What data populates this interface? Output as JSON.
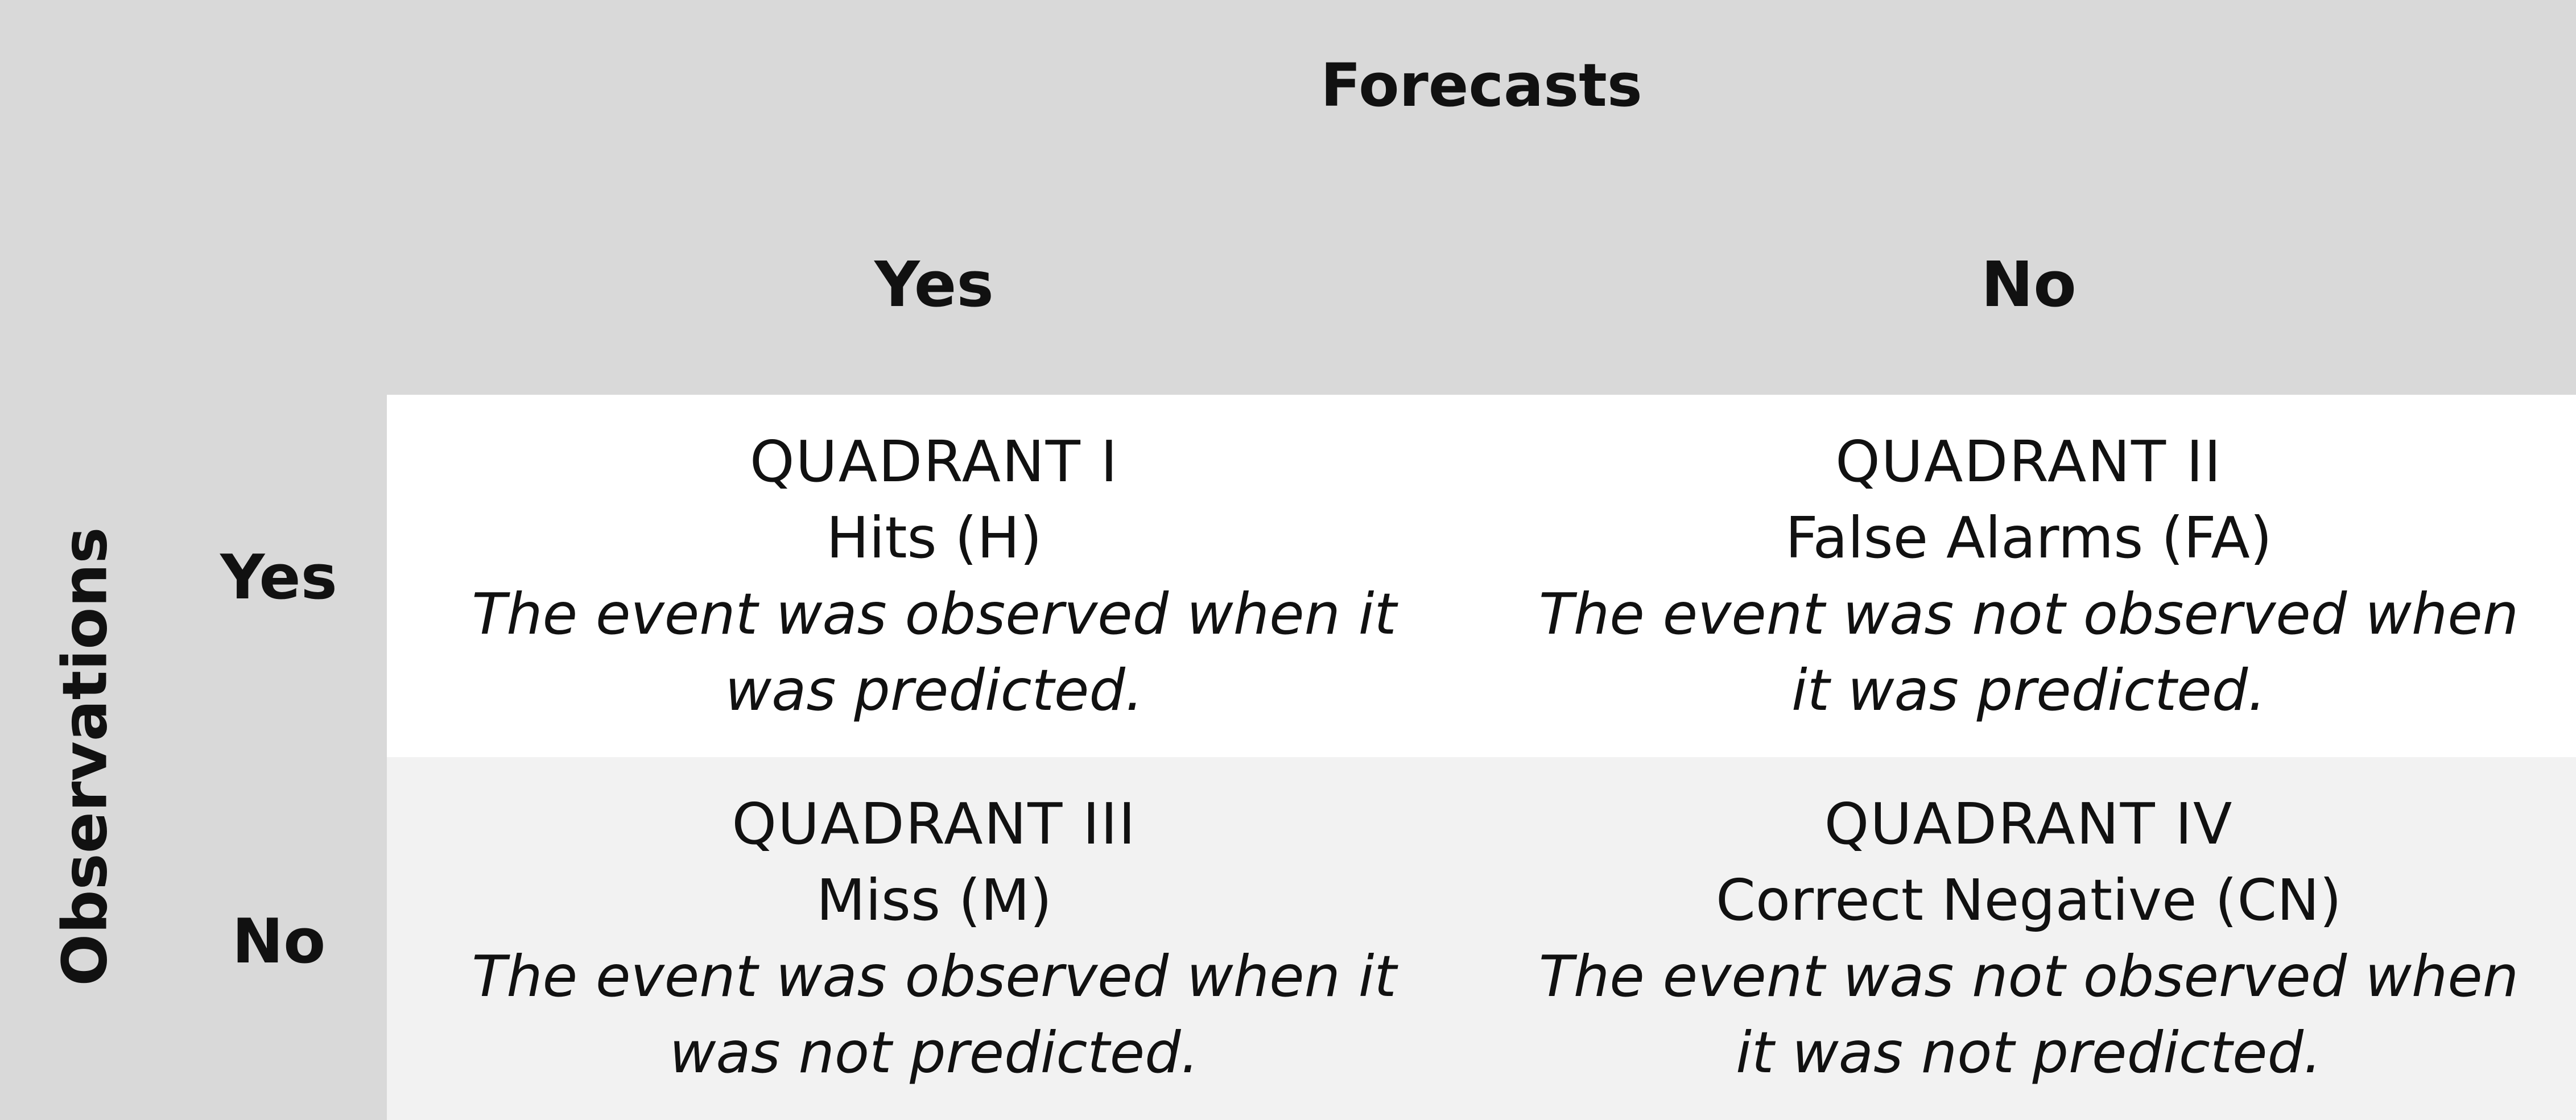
{
  "header": {
    "forecasts_label": "Forecasts",
    "columns": [
      "Yes",
      "No"
    ]
  },
  "side": {
    "observations_label": "Observations",
    "rows": [
      "Yes",
      "No"
    ]
  },
  "quadrants": [
    {
      "name": "QUADRANT I",
      "term": "Hits (H)",
      "description": "The event was observed when it was predicted."
    },
    {
      "name": "QUADRANT II",
      "term": "False Alarms (FA)",
      "description": "The event was not observed when it was predicted."
    },
    {
      "name": "QUADRANT III",
      "term": "Miss (M)",
      "description": "The event was observed when it was not predicted."
    },
    {
      "name": "QUADRANT IV",
      "term": "Correct Negative (CN)",
      "description": "The event was not observed when it was not predicted."
    }
  ],
  "colors": {
    "background": "#d9d9d9",
    "row_yes_fill": "#ffffff",
    "row_no_fill": "#f2f2f2",
    "text": "#111111"
  }
}
